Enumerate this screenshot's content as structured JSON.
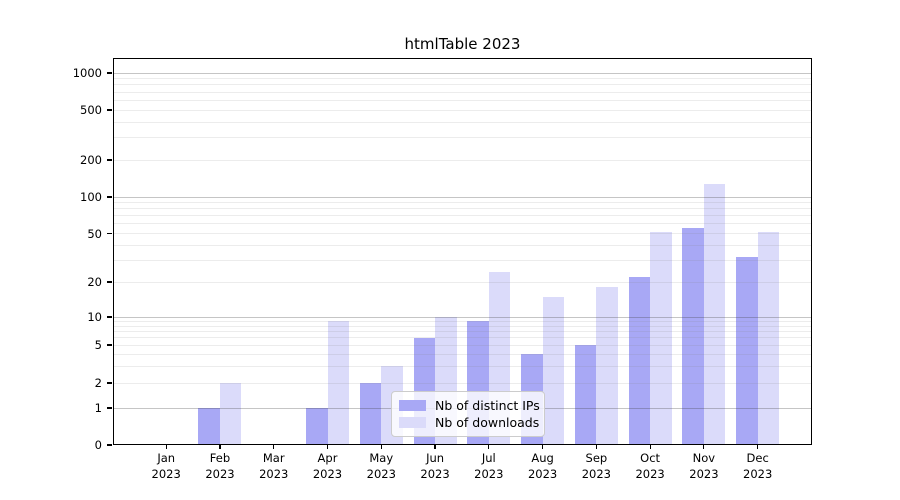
{
  "chart_data": {
    "type": "bar",
    "title": "htmlTable 2023",
    "categories": [
      "Jan",
      "Feb",
      "Mar",
      "Apr",
      "May",
      "Jun",
      "Jul",
      "Aug",
      "Sep",
      "Oct",
      "Nov",
      "Dec"
    ],
    "category_year": "2023",
    "series": [
      {
        "name": "Nb of distinct IPs",
        "color": "#a8a8f5",
        "values": [
          0,
          1,
          0,
          1,
          2,
          6,
          9,
          4,
          5,
          22,
          56,
          32
        ]
      },
      {
        "name": "Nb of downloads",
        "color": "#dbdbfa",
        "values": [
          0,
          2,
          0,
          9,
          3,
          10,
          24,
          15,
          18,
          51,
          127,
          51
        ]
      }
    ],
    "y_ticks": [
      0,
      1,
      2,
      5,
      10,
      20,
      50,
      100,
      200,
      500,
      1000
    ],
    "y_axis_scale": "log-like",
    "ylim": [
      0,
      1000
    ],
    "xlabel": "",
    "ylabel": "",
    "grid": "horizontal major and minor",
    "legend_position": "bottom-center"
  }
}
